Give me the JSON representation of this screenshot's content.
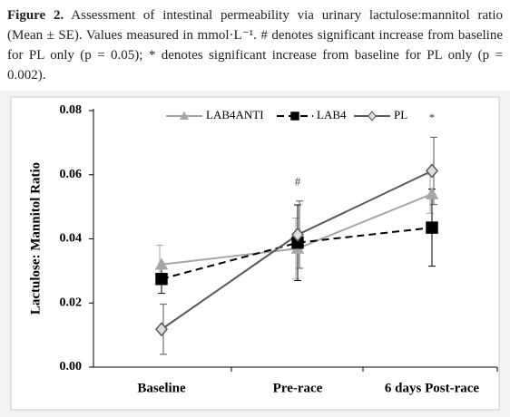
{
  "caption": {
    "label": "Figure 2.",
    "text": "Assessment of intestinal permeability via urinary lactulose:mannitol ratio (Mean ± SE). Values measured in mmol·L⁻¹. # denotes significant increase from baseline for PL only (p = 0.05); * denotes significant increase from baseline for PL only (p = 0.002)."
  },
  "chart_data": {
    "type": "line",
    "y_label": "Lactulose: Mannitol Ratio",
    "categories": [
      "Baseline",
      "Pre-race",
      "6 days Post-race"
    ],
    "series": [
      {
        "name": "LAB4ANTI",
        "color": "#a6a6a6",
        "dash": false,
        "marker": "triangle",
        "values": [
          0.032,
          0.037,
          0.054
        ],
        "errors": [
          0.006,
          0.0095,
          0.006
        ]
      },
      {
        "name": "LAB4",
        "color": "#000000",
        "dash": true,
        "marker": "square",
        "values": [
          0.0275,
          0.0388,
          0.0435
        ],
        "errors": [
          0.0045,
          0.0118,
          0.012
        ]
      },
      {
        "name": "PL",
        "color": "#595959",
        "dash": false,
        "marker": "diamond",
        "values": [
          0.0118,
          0.0413,
          0.0612
        ],
        "errors": [
          0.0078,
          0.0105,
          0.0105
        ]
      }
    ],
    "annotations": [
      {
        "text": "#",
        "category": 1,
        "y": 0.0575
      },
      {
        "text": "*",
        "category": 2,
        "y": 0.0775
      }
    ],
    "ylim": [
      0,
      0.08
    ],
    "yticks": [
      {
        "value": 0,
        "label": "0.00"
      },
      {
        "value": 0.02,
        "label": "0.02"
      },
      {
        "value": 0.04,
        "label": "0.04"
      },
      {
        "value": 0.06,
        "label": "0.06"
      },
      {
        "value": 0.08,
        "label": "0.08"
      }
    ]
  }
}
